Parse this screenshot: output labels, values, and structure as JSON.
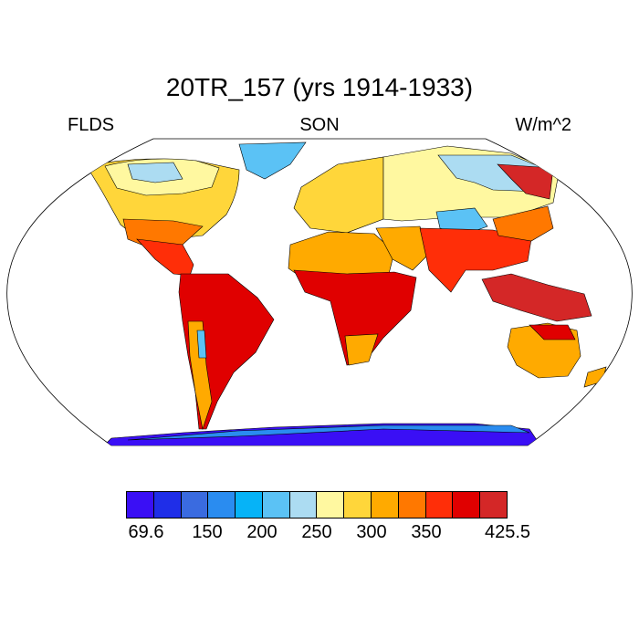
{
  "title": "20TR_157 (yrs 1914-1933)",
  "left_label": "FLDS",
  "center_label": "SON",
  "right_label": "W/m^2",
  "colorbar": {
    "colors": [
      "#3a0ff5",
      "#1f2ee8",
      "#3a6be0",
      "#2a8cf0",
      "#06b3f7",
      "#5bc2f5",
      "#acdcf2",
      "#fff8a0",
      "#ffd63a",
      "#ffaa00",
      "#ff7800",
      "#ff2e08",
      "#e00000",
      "#d42727"
    ],
    "labels": [
      "69.6",
      "150",
      "200",
      "250",
      "300",
      "350",
      "425.5"
    ]
  },
  "chart_data": {
    "type": "heatmap",
    "variable": "FLDS",
    "season": "SON",
    "units": "W/m^2",
    "title": "20TR_157 (yrs 1914-1933)",
    "range": [
      69.6,
      425.5
    ],
    "contour_levels": [
      69.6,
      150,
      200,
      250,
      300,
      350,
      425.5
    ],
    "projection": "robinson"
  }
}
